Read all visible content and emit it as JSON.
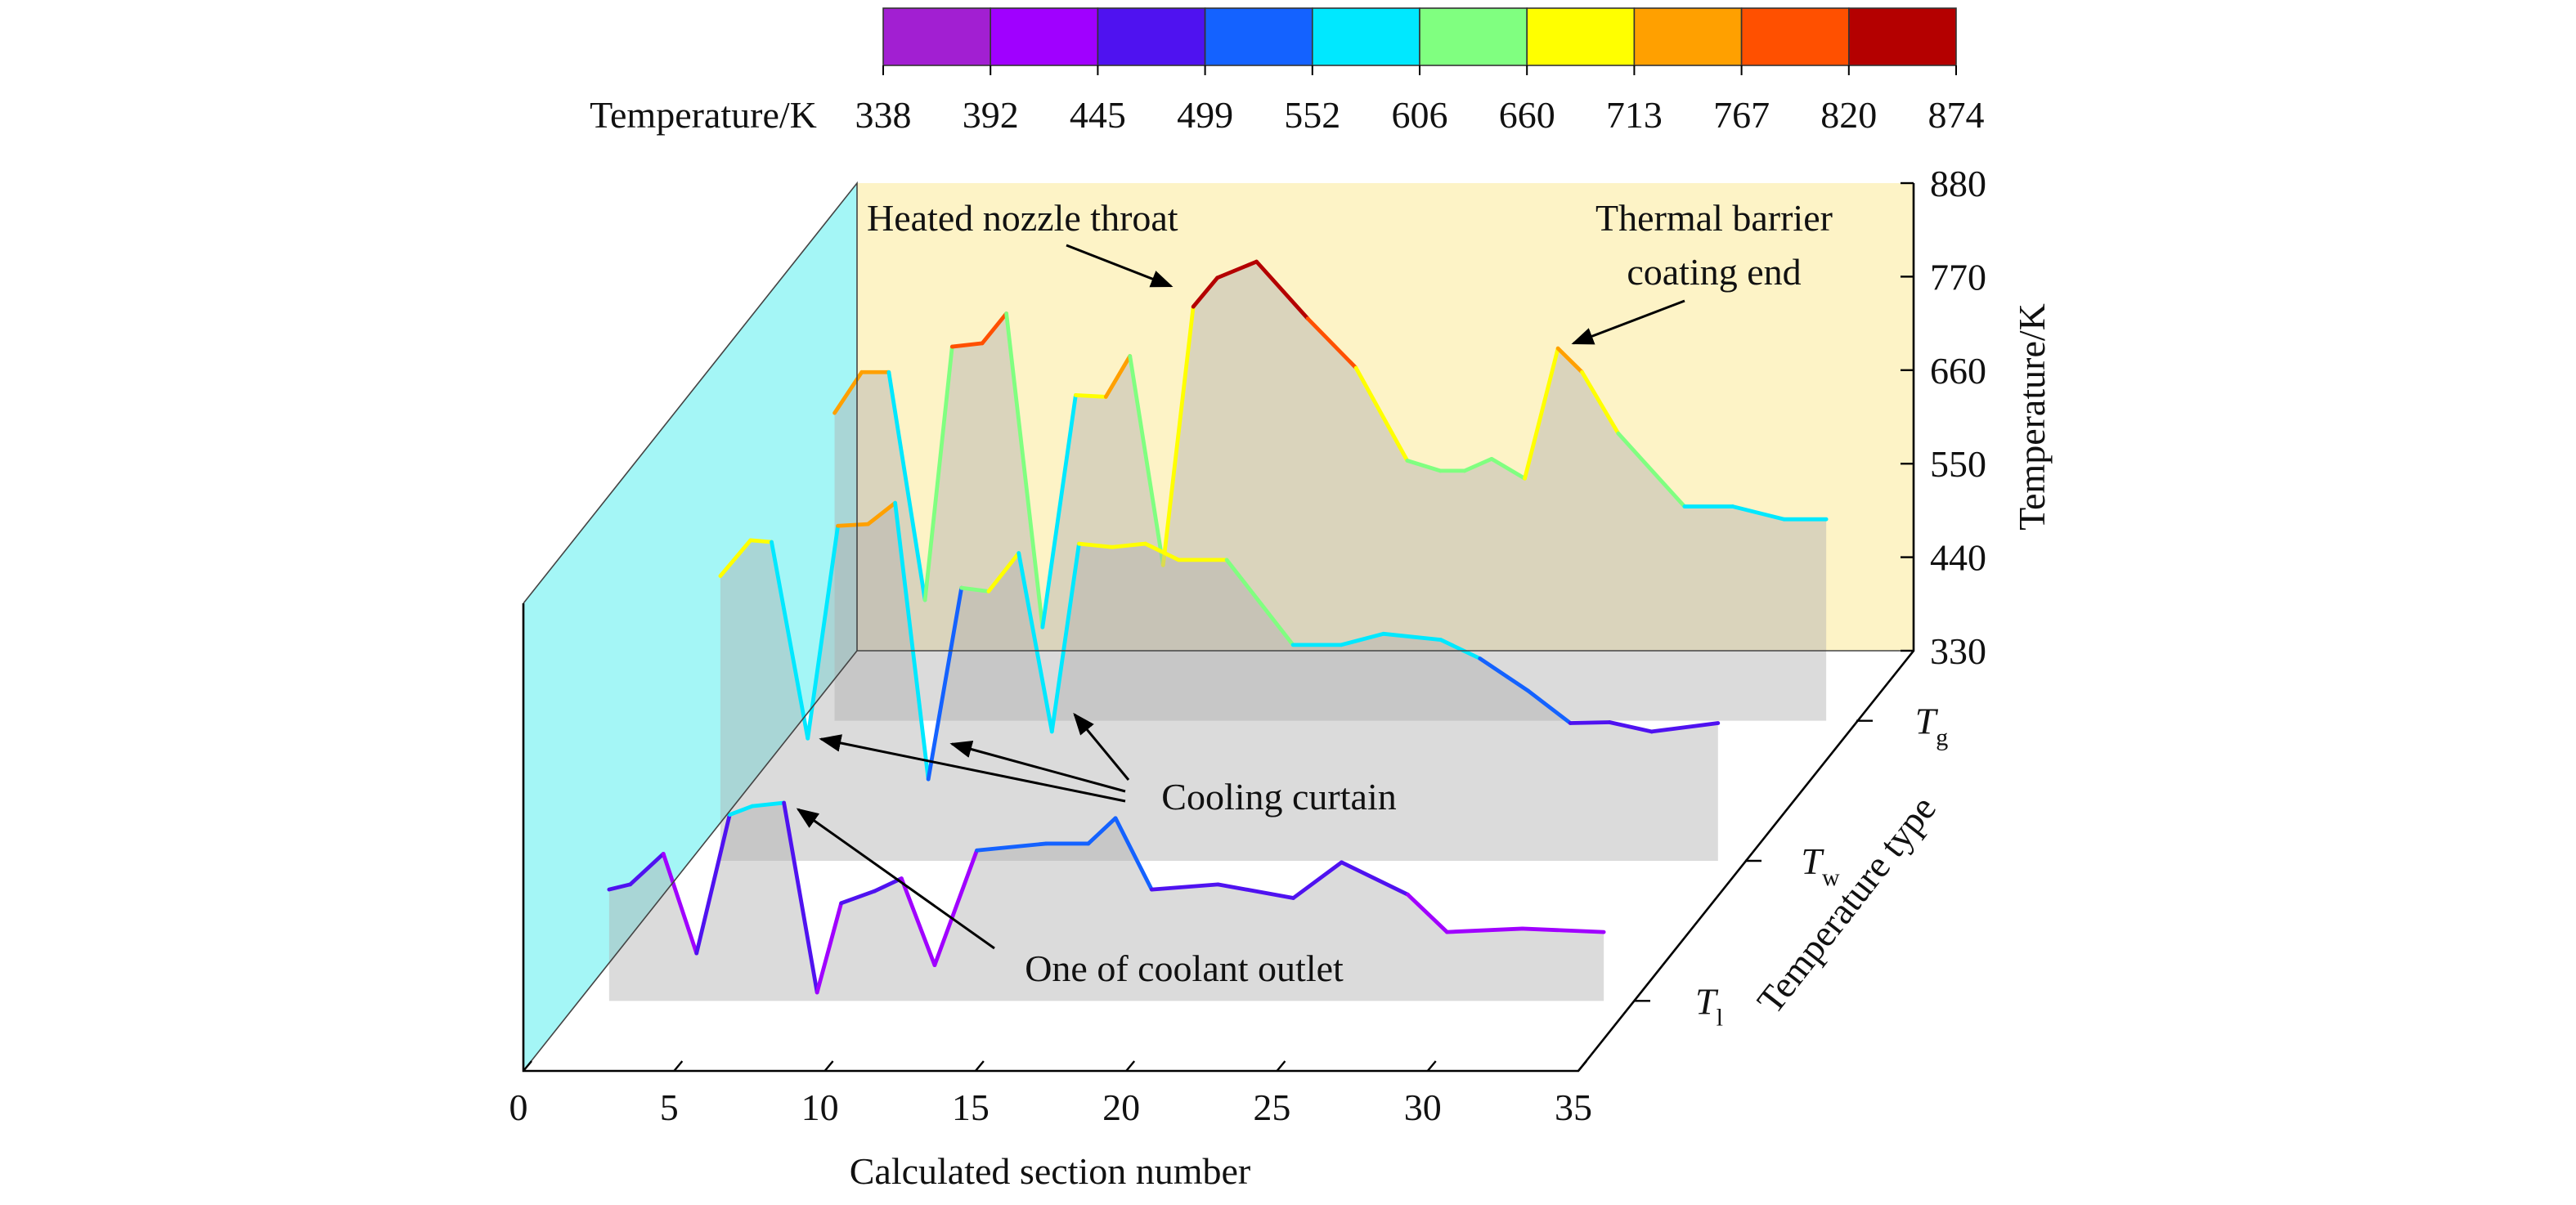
{
  "chart_data": {
    "type": "waterfall3d",
    "colorbar": {
      "label": "Temperature/K",
      "ticks": [
        338,
        392,
        445,
        499,
        552,
        606,
        660,
        713,
        767,
        820,
        874
      ],
      "colors": [
        "#a21fd2",
        "#a000ff",
        "#4f12f0",
        "#1462ff",
        "#00e8ff",
        "#80ff80",
        "#ffff00",
        "#ffa000",
        "#ff5000",
        "#b40000"
      ]
    },
    "xlabel": "Calculated section number",
    "zlabel": "Temperature/K",
    "ylabel": "Temperature type",
    "xlim": [
      0,
      35
    ],
    "xticks": [
      0,
      5,
      10,
      15,
      20,
      25,
      30,
      35
    ],
    "zlim": [
      330,
      880
    ],
    "zticks": [
      330,
      440,
      550,
      660,
      770,
      880
    ],
    "grid": true,
    "series": [
      {
        "name": "Tl",
        "x": [
          1.0,
          1.7,
          2.8,
          3.9,
          5.0,
          5.75,
          6.8,
          7.9,
          8.7,
          9.8,
          10.7,
          11.8,
          13.2,
          15.5,
          16.9,
          17.8,
          19.0,
          21.2,
          23.7,
          25.3,
          27.5,
          28.8,
          31.3,
          34.0
        ],
        "values": [
          461,
          467,
          503,
          386,
          549,
          559,
          563,
          340,
          445,
          459,
          474,
          372,
          507,
          515,
          515,
          545,
          461,
          467,
          451,
          493,
          455,
          411,
          415,
          411
        ]
      },
      {
        "name": "Tw",
        "x": [
          1.0,
          2.0,
          2.7,
          3.9,
          4.9,
          5.9,
          6.8,
          7.9,
          9.0,
          9.9,
          10.9,
          12.0,
          12.9,
          14.0,
          15.1,
          16.2,
          17.8,
          20.0,
          21.6,
          23.0,
          24.9,
          26.2,
          27.8,
          29.2,
          30.5,
          31.9,
          34.1
        ],
        "values": [
          665,
          707,
          705,
          474,
          724,
          726,
          751,
          426,
          651,
          647,
          692,
          482,
          703,
          699,
          703,
          684,
          684,
          584,
          584,
          597,
          590,
          568,
          530,
          492,
          493,
          482,
          492
        ]
      },
      {
        "name": "Tg",
        "x": [
          1.1,
          2.0,
          2.9,
          4.1,
          5.0,
          6.0,
          6.8,
          8.0,
          9.1,
          10.1,
          10.9,
          12.0,
          13.0,
          13.8,
          15.1,
          16.8,
          18.4,
          20.1,
          21.2,
          22.0,
          22.9,
          24.0,
          25.1,
          25.9,
          27.1,
          29.3,
          30.9,
          32.6,
          34.0
        ],
        "values": [
          692,
          740,
          740,
          472,
          770,
          774,
          809,
          440,
          713,
          711,
          759,
          513,
          817,
          851,
          870,
          803,
          745,
          636,
          624,
          624,
          638,
          615,
          768,
          740,
          668,
          582,
          582,
          567,
          567
        ]
      }
    ],
    "annotations": [
      {
        "text": "Heated nozzle throat"
      },
      {
        "text": [
          "Thermal barrier",
          "coating end"
        ]
      },
      {
        "text": "Cooling curtain"
      },
      {
        "text": "One of coolant outlet"
      }
    ]
  }
}
